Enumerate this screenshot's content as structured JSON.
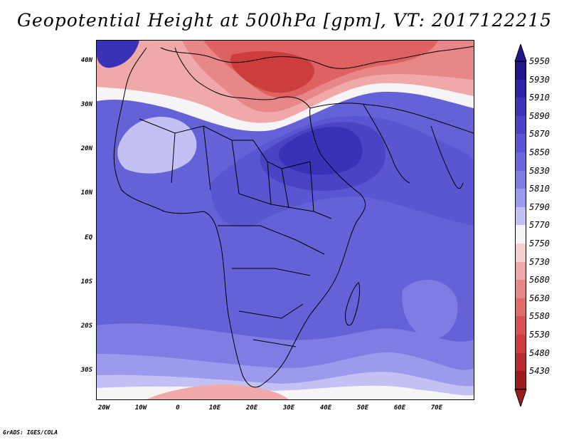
{
  "title": "Geopotential Height at 500hPa [gpm], VT: 2017122215",
  "footer": "GrADS: IGES/COLA",
  "latitude_labels": [
    "40N",
    "30N",
    "20N",
    "10N",
    "EQ",
    "10S",
    "20S",
    "30S"
  ],
  "longitude_labels": [
    "20W",
    "10W",
    "0",
    "10E",
    "20E",
    "30E",
    "40E",
    "50E",
    "60E",
    "70E"
  ],
  "colorbar": {
    "levels": [
      "5950",
      "5930",
      "5910",
      "5890",
      "5870",
      "5850",
      "5830",
      "5810",
      "5790",
      "5770",
      "5750",
      "5730",
      "5680",
      "5630",
      "5580",
      "5530",
      "5480",
      "5430"
    ],
    "colors": [
      "#22148f",
      "#2d23a8",
      "#3b33b8",
      "#4a44c4",
      "#5a56d2",
      "#6b68dc",
      "#7f7de4",
      "#9c9aec",
      "#c3c1f4",
      "#f7f4f7",
      "#f6cfcf",
      "#f0a9a9",
      "#e88787",
      "#e06b6b",
      "#d85252",
      "#cc3e3e",
      "#b62c2c",
      "#9c1d1d"
    ]
  },
  "map_colors": {
    "ocean_fill": "#6562d8",
    "deep_blue": "#3a32b6",
    "light_blue": "#c3c1f4",
    "white_band": "#f7f4f7",
    "light_red": "#f0a9a9",
    "red": "#df6262",
    "deep_red": "#cc3e3e"
  }
}
